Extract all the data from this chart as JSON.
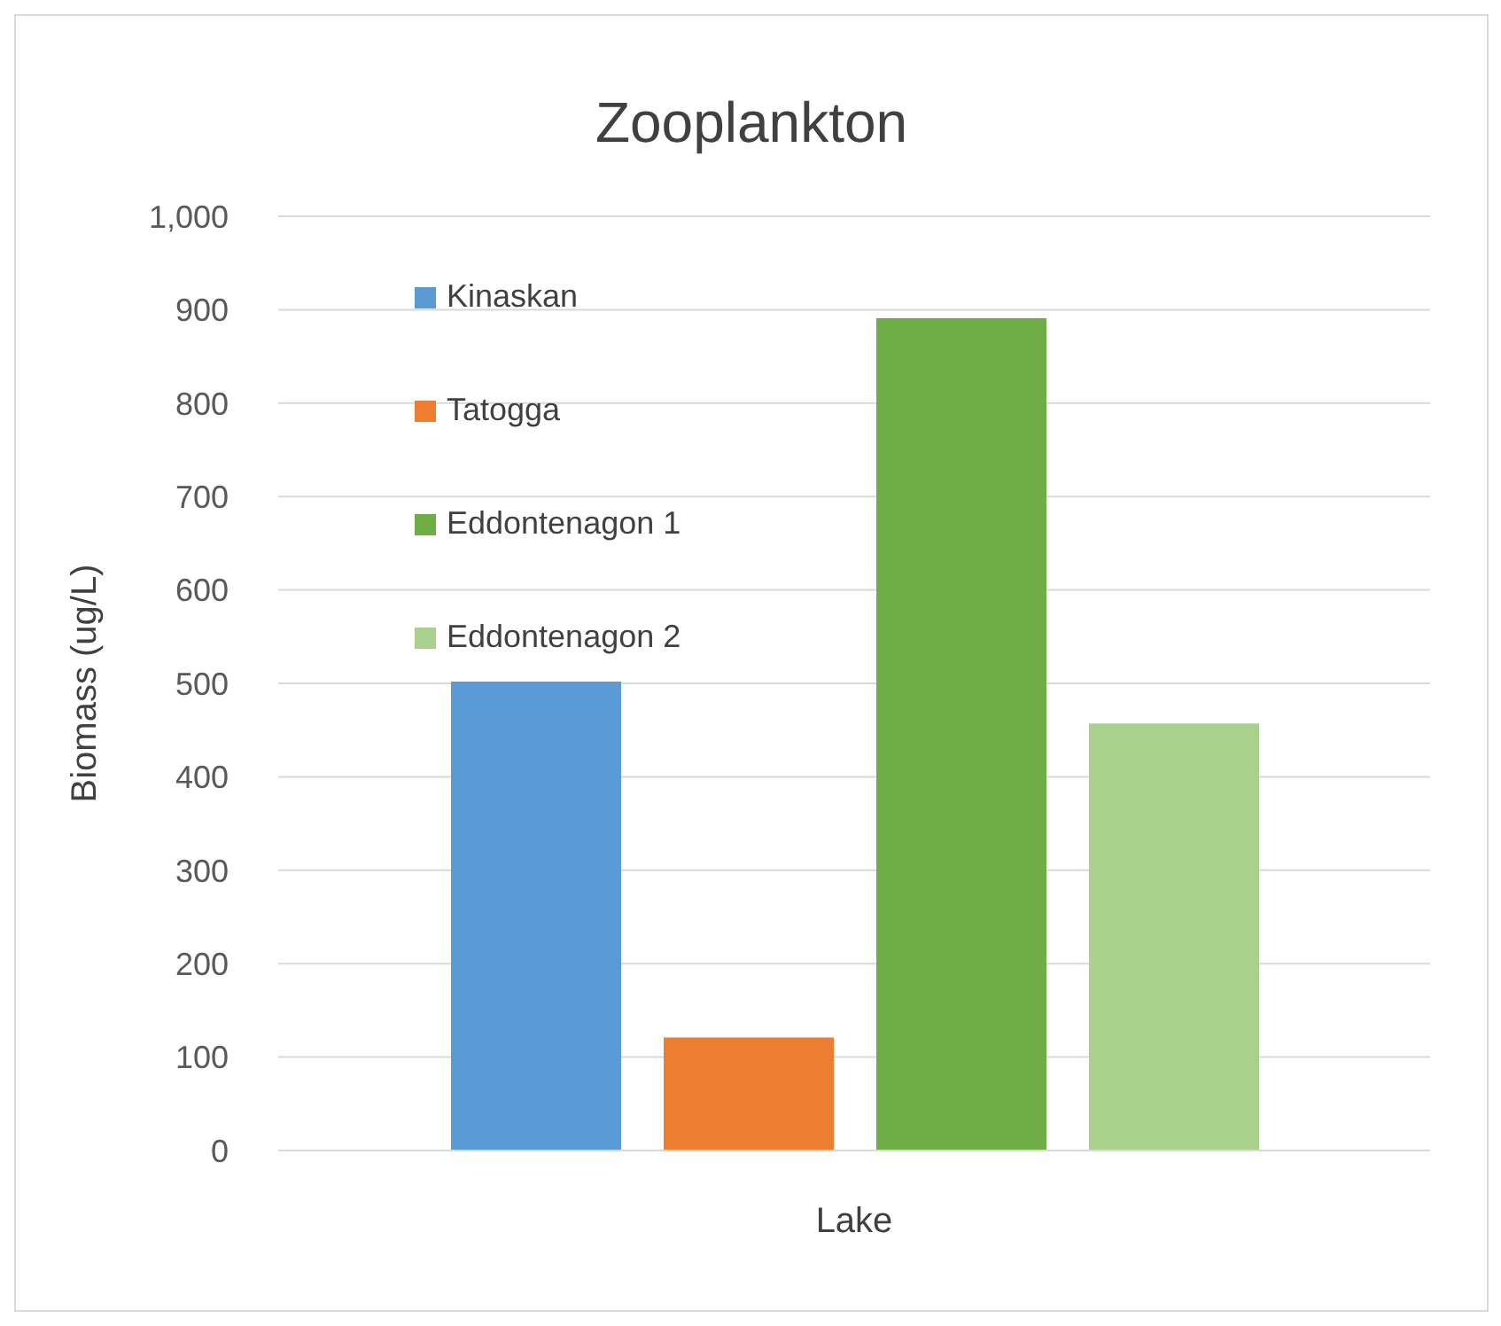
{
  "chart_data": {
    "type": "bar",
    "title": "Zooplankton",
    "xlabel": "Lake",
    "ylabel": "Biomass (ug/L)",
    "categories": [
      null
    ],
    "series": [
      {
        "name": "Kinaskan",
        "color": "#5b9bd5",
        "values": [
          502
        ]
      },
      {
        "name": "Tatogga",
        "color": "#ed7d31",
        "values": [
          121
        ]
      },
      {
        "name": "Eddontenagon 1",
        "color": "#70ad47",
        "values": [
          891
        ]
      },
      {
        "name": "Eddontenagon 2",
        "color": "#a9d18e",
        "values": [
          457
        ]
      }
    ],
    "ylim": [
      0,
      1000
    ],
    "yticks": [
      0,
      100,
      200,
      300,
      400,
      500,
      600,
      700,
      800,
      900,
      {
        "value": 1000,
        "label": "1,000"
      }
    ],
    "grid": "y",
    "legend": "top left"
  }
}
